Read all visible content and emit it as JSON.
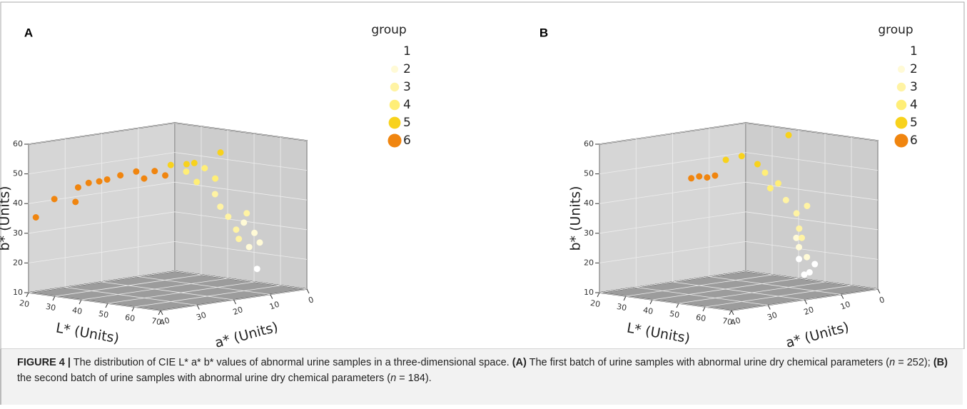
{
  "chart_data": [
    {
      "type": "scatter3d",
      "label": "A",
      "xlabel": "L* (Units)",
      "ylabel": "a* (Units)",
      "zlabel": "b* (Units)",
      "xlim": [
        20,
        70
      ],
      "xticks": [
        20,
        30,
        40,
        50,
        60,
        70
      ],
      "ylim": [
        0,
        40
      ],
      "yticks": [
        0,
        10,
        20,
        30,
        40
      ],
      "zlim": [
        10,
        60
      ],
      "zticks": [
        10,
        20,
        30,
        40,
        50,
        60
      ],
      "legend_title": "group",
      "series": [
        {
          "name": "1",
          "color": "#ffffff",
          "x": [
            65
          ],
          "y": [
            10
          ],
          "z": [
            18
          ]
        },
        {
          "name": "2",
          "color": "#fffad6",
          "x": [
            64,
            66,
            62,
            60
          ],
          "y": [
            10,
            10,
            10,
            10
          ],
          "z": [
            30,
            27,
            25,
            33
          ]
        },
        {
          "name": "3",
          "color": "#fff3a3",
          "x": [
            56,
            58,
            61,
            64,
            65,
            68
          ],
          "y": [
            15,
            15,
            15,
            15,
            15,
            15
          ],
          "z": [
            43,
            39,
            36,
            32,
            29,
            38
          ]
        },
        {
          "name": "4",
          "color": "#ffee77",
          "x": [
            52,
            59,
            63,
            56
          ],
          "y": [
            20,
            20,
            20,
            20
          ],
          "z": [
            51,
            53,
            50,
            48
          ]
        },
        {
          "name": "5",
          "color": "#f8d21c",
          "x": [
            60,
            66,
            65,
            62
          ],
          "y": [
            30,
            30,
            20,
            25
          ],
          "z": [
            56,
            57,
            59,
            56
          ]
        },
        {
          "name": "6",
          "color": "#f0850f",
          "x": [
            20,
            27,
            35,
            36,
            40,
            47,
            52,
            58,
            65,
            69,
            44,
            61
          ],
          "y": [
            38,
            38,
            38,
            38,
            38,
            38,
            38,
            38,
            38,
            38,
            38,
            38
          ],
          "z": [
            35,
            42,
            42,
            47,
            49,
            51,
            53,
            55,
            56,
            55,
            50,
            53
          ]
        }
      ]
    },
    {
      "type": "scatter3d",
      "label": "B",
      "xlabel": "L* (Units)",
      "ylabel": "a* (Units)",
      "zlabel": "b* (Units)",
      "xlim": [
        20,
        70
      ],
      "xticks": [
        20,
        30,
        40,
        50,
        60,
        70
      ],
      "ylim": [
        0,
        40
      ],
      "yticks": [
        0,
        10,
        20,
        30,
        40
      ],
      "zlim": [
        10,
        60
      ],
      "zticks": [
        10,
        20,
        30,
        40,
        50,
        60
      ],
      "legend_title": "group",
      "series": [
        {
          "name": "1",
          "color": "#ffffff",
          "x": [
            54,
            58,
            60,
            56
          ],
          "y": [
            10,
            10,
            10,
            10
          ],
          "z": [
            20,
            16,
            19,
            15
          ]
        },
        {
          "name": "2",
          "color": "#fffad6",
          "x": [
            54,
            57,
            53
          ],
          "y": [
            10,
            10,
            10
          ],
          "z": [
            24,
            21,
            27
          ]
        },
        {
          "name": "3",
          "color": "#fff3a3",
          "x": [
            56,
            60,
            61,
            64,
            62
          ],
          "y": [
            15,
            15,
            15,
            15,
            15
          ],
          "z": [
            41,
            37,
            32,
            40,
            29
          ]
        },
        {
          "name": "4",
          "color": "#ffee77",
          "x": [
            55,
            60,
            57
          ],
          "y": [
            20,
            20,
            20
          ],
          "z": [
            51,
            48,
            46
          ]
        },
        {
          "name": "5",
          "color": "#f8d21c",
          "x": [
            54,
            60,
            66,
            57
          ],
          "y": [
            30,
            30,
            30,
            15
          ],
          "z": [
            57,
            59,
            57,
            63
          ]
        },
        {
          "name": "6",
          "color": "#f0850f",
          "x": [
            52,
            55,
            58,
            61
          ],
          "y": [
            38,
            38,
            38,
            38
          ],
          "z": [
            52,
            53,
            53,
            54
          ]
        }
      ]
    }
  ],
  "caption": [
    "FIGURE 4 |",
    " The distribution of CIE L* a* b* values of abnormal urine samples in a three-dimensional space. ",
    "(A)",
    " The first batch of urine samples with abnormal urine dry chemical parameters (",
    "n",
    " = 252); ",
    "(B)",
    " the second batch of urine samples with abnormal urine dry chemical parameters (",
    "n",
    " = 184)."
  ]
}
